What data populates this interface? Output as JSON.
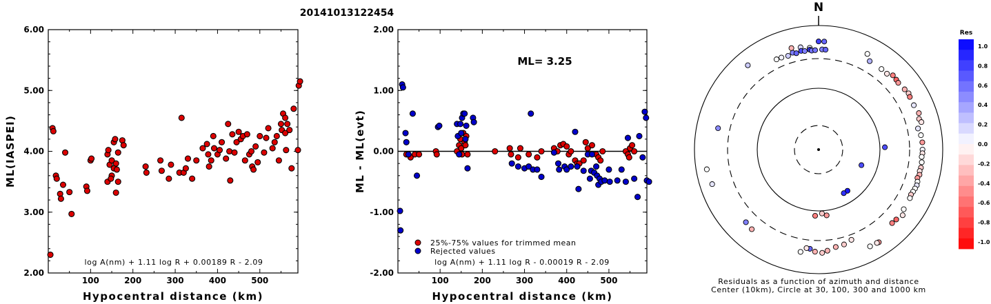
{
  "title": "20141013122454",
  "chart_data": [
    {
      "type": "scatter",
      "xlabel": "Hypocentral distance (km)",
      "ylabel": "ML(IASPEI)",
      "xlim": [
        0,
        590
      ],
      "ylim": [
        2.0,
        6.0
      ],
      "xticks": [
        "100",
        "200",
        "300",
        "400",
        "500"
      ],
      "yticks": [
        "2.00",
        "3.00",
        "4.00",
        "5.00",
        "6.00"
      ],
      "formula": "log A(nm) + 1.11 log R + 0.00189 R - 2.09",
      "point_color": "#dd0000",
      "points": [
        [
          5,
          2.3
        ],
        [
          10,
          4.38
        ],
        [
          12,
          4.33
        ],
        [
          18,
          3.6
        ],
        [
          20,
          3.55
        ],
        [
          28,
          3.3
        ],
        [
          30,
          3.22
        ],
        [
          35,
          3.45
        ],
        [
          40,
          3.98
        ],
        [
          50,
          3.33
        ],
        [
          55,
          2.97
        ],
        [
          90,
          3.42
        ],
        [
          92,
          3.35
        ],
        [
          100,
          3.85
        ],
        [
          102,
          3.88
        ],
        [
          140,
          3.95
        ],
        [
          142,
          4.02
        ],
        [
          140,
          3.5
        ],
        [
          145,
          3.78
        ],
        [
          150,
          3.6
        ],
        [
          155,
          3.72
        ],
        [
          150,
          3.85
        ],
        [
          148,
          3.55
        ],
        [
          155,
          4.15
        ],
        [
          158,
          4.2
        ],
        [
          160,
          3.8
        ],
        [
          162,
          3.7
        ],
        [
          165,
          3.5
        ],
        [
          160,
          3.32
        ],
        [
          165,
          3.98
        ],
        [
          175,
          4.18
        ],
        [
          178,
          4.1
        ],
        [
          230,
          3.75
        ],
        [
          232,
          3.65
        ],
        [
          265,
          3.85
        ],
        [
          268,
          3.68
        ],
        [
          285,
          3.55
        ],
        [
          290,
          3.78
        ],
        [
          310,
          3.65
        ],
        [
          315,
          4.55
        ],
        [
          320,
          3.65
        ],
        [
          325,
          3.72
        ],
        [
          330,
          3.88
        ],
        [
          340,
          3.55
        ],
        [
          350,
          3.85
        ],
        [
          365,
          4.05
        ],
        [
          375,
          4.12
        ],
        [
          378,
          3.95
        ],
        [
          380,
          3.75
        ],
        [
          385,
          3.85
        ],
        [
          390,
          4.25
        ],
        [
          392,
          4.05
        ],
        [
          400,
          3.95
        ],
        [
          405,
          4.02
        ],
        [
          410,
          4.15
        ],
        [
          420,
          3.88
        ],
        [
          425,
          4.45
        ],
        [
          428,
          4.0
        ],
        [
          430,
          3.52
        ],
        [
          435,
          4.28
        ],
        [
          440,
          3.98
        ],
        [
          445,
          4.15
        ],
        [
          450,
          4.32
        ],
        [
          455,
          4.2
        ],
        [
          460,
          4.25
        ],
        [
          465,
          3.85
        ],
        [
          470,
          4.28
        ],
        [
          475,
          3.95
        ],
        [
          480,
          4.0
        ],
        [
          482,
          3.75
        ],
        [
          485,
          3.7
        ],
        [
          490,
          4.08
        ],
        [
          495,
          3.82
        ],
        [
          500,
          4.25
        ],
        [
          510,
          3.98
        ],
        [
          515,
          4.22
        ],
        [
          520,
          4.38
        ],
        [
          530,
          4.05
        ],
        [
          535,
          4.15
        ],
        [
          540,
          4.25
        ],
        [
          545,
          3.85
        ],
        [
          550,
          4.45
        ],
        [
          552,
          4.35
        ],
        [
          555,
          4.62
        ],
        [
          560,
          4.55
        ],
        [
          560,
          4.3
        ],
        [
          562,
          4.02
        ],
        [
          565,
          4.45
        ],
        [
          570,
          4.35
        ],
        [
          575,
          3.72
        ],
        [
          580,
          4.7
        ],
        [
          590,
          4.02
        ],
        [
          592,
          5.08
        ],
        [
          595,
          5.15
        ]
      ]
    },
    {
      "type": "scatter",
      "xlabel": "Hypocentral distance (km)",
      "ylabel": "ML - ML(evt)",
      "xlim": [
        0,
        590
      ],
      "ylim": [
        -2.0,
        2.0
      ],
      "xticks": [
        "100",
        "200",
        "300",
        "400",
        "500"
      ],
      "yticks": [
        "-2.00",
        "-1.00",
        "0.00",
        "1.00",
        "2.00"
      ],
      "annotation": "ML= 3.25",
      "formula": "log A(nm) + 1.11 log R - 0.00019 R - 2.09",
      "legend": [
        {
          "label": "25%-75% values for trimmed mean",
          "color": "#dd0000"
        },
        {
          "label": "Rejected values",
          "color": "#0000cc"
        }
      ],
      "series": [
        {
          "name": "25%-75% values for trimmed mean",
          "color": "#dd0000",
          "points": [
            [
              20,
              -0.05
            ],
            [
              30,
              -0.1
            ],
            [
              40,
              -0.05
            ],
            [
              50,
              -0.05
            ],
            [
              90,
              0.0
            ],
            [
              92,
              -0.05
            ],
            [
              140,
              0.0
            ],
            [
              145,
              0.1
            ],
            [
              148,
              0.2
            ],
            [
              150,
              0.05
            ],
            [
              152,
              -0.05
            ],
            [
              155,
              0.3
            ],
            [
              158,
              0.15
            ],
            [
              160,
              0.1
            ],
            [
              162,
              0.25
            ],
            [
              165,
              -0.05
            ],
            [
              230,
              0.0
            ],
            [
              265,
              0.05
            ],
            [
              268,
              -0.05
            ],
            [
              285,
              -0.1
            ],
            [
              290,
              0.05
            ],
            [
              310,
              -0.05
            ],
            [
              330,
              -0.1
            ],
            [
              340,
              0.0
            ],
            [
              370,
              0.05
            ],
            [
              378,
              0.0
            ],
            [
              385,
              0.1
            ],
            [
              392,
              0.12
            ],
            [
              400,
              0.08
            ],
            [
              405,
              -0.05
            ],
            [
              410,
              0.0
            ],
            [
              420,
              -0.15
            ],
            [
              425,
              -0.2
            ],
            [
              430,
              -0.2
            ],
            [
              440,
              -0.15
            ],
            [
              445,
              0.15
            ],
            [
              450,
              0.05
            ],
            [
              460,
              0.1
            ],
            [
              470,
              -0.05
            ],
            [
              475,
              -0.1
            ],
            [
              480,
              -0.15
            ],
            [
              485,
              0.0
            ],
            [
              540,
              0.0
            ],
            [
              545,
              -0.05
            ],
            [
              548,
              -0.1
            ],
            [
              550,
              0.05
            ],
            [
              555,
              0.1
            ],
            [
              560,
              0.0
            ]
          ]
        },
        {
          "name": "Rejected values",
          "color": "#0000cc",
          "points": [
            [
              5,
              -0.98
            ],
            [
              6,
              -1.3
            ],
            [
              10,
              1.1
            ],
            [
              12,
              1.05
            ],
            [
              18,
              0.3
            ],
            [
              20,
              0.15
            ],
            [
              25,
              -0.05
            ],
            [
              35,
              0.62
            ],
            [
              45,
              -0.4
            ],
            [
              95,
              0.4
            ],
            [
              98,
              0.42
            ],
            [
              140,
              0.45
            ],
            [
              142,
              0.25
            ],
            [
              145,
              -0.05
            ],
            [
              148,
              0.45
            ],
            [
              150,
              0.3
            ],
            [
              152,
              0.55
            ],
            [
              155,
              0.62
            ],
            [
              158,
              0.62
            ],
            [
              160,
              0.2
            ],
            [
              162,
              0.42
            ],
            [
              165,
              -0.28
            ],
            [
              178,
              0.55
            ],
            [
              180,
              0.48
            ],
            [
              270,
              -0.2
            ],
            [
              285,
              -0.25
            ],
            [
              300,
              -0.28
            ],
            [
              310,
              -0.25
            ],
            [
              315,
              0.62
            ],
            [
              320,
              -0.3
            ],
            [
              330,
              -0.3
            ],
            [
              340,
              -0.42
            ],
            [
              370,
              -0.02
            ],
            [
              380,
              -0.2
            ],
            [
              382,
              -0.3
            ],
            [
              395,
              -0.25
            ],
            [
              400,
              -0.3
            ],
            [
              410,
              -0.25
            ],
            [
              420,
              0.32
            ],
            [
              425,
              -0.25
            ],
            [
              428,
              -0.62
            ],
            [
              440,
              -0.32
            ],
            [
              450,
              -0.05
            ],
            [
              455,
              -0.45
            ],
            [
              458,
              -0.32
            ],
            [
              460,
              -0.05
            ],
            [
              465,
              -0.35
            ],
            [
              470,
              -0.25
            ],
            [
              472,
              -0.4
            ],
            [
              475,
              -0.55
            ],
            [
              478,
              -0.45
            ],
            [
              482,
              -0.5
            ],
            [
              490,
              -0.48
            ],
            [
              500,
              -0.3
            ],
            [
              502,
              -0.5
            ],
            [
              520,
              -0.48
            ],
            [
              530,
              -0.3
            ],
            [
              540,
              -0.5
            ],
            [
              545,
              0.22
            ],
            [
              560,
              -0.45
            ],
            [
              568,
              -0.75
            ],
            [
              572,
              0.25
            ],
            [
              580,
              -0.1
            ],
            [
              585,
              0.65
            ],
            [
              588,
              0.55
            ],
            [
              590,
              -0.48
            ],
            [
              595,
              -0.5
            ]
          ]
        }
      ]
    },
    {
      "type": "polar-scatter",
      "north_label": "N",
      "caption_line1": "Residuals as a function of azimuth and distance",
      "caption_line2": "Center (10km), Circle at 30, 100, 300 and 1000 km",
      "colorbar_title": "Res",
      "colorbar_ticks": [
        "1.0",
        "0.8",
        "0.6",
        "0.4",
        "0.2",
        "0.0",
        "-0.2",
        "-0.4",
        "-0.6",
        "-0.8",
        "-1.0"
      ],
      "rings_km": [
        30,
        100,
        300,
        1000
      ],
      "ring_styles": [
        "dashed",
        "solid",
        "dashed",
        "solid"
      ],
      "stations": [
        [
          0,
          560,
          0.75
        ],
        [
          3,
          560,
          0.6
        ],
        [
          355,
          450,
          0.05
        ],
        [
          350,
          480,
          0.15
        ],
        [
          345,
          500,
          -0.3
        ],
        [
          320,
          600,
          0.2
        ],
        [
          335,
          410,
          0.0
        ],
        [
          338,
          405,
          0.05
        ],
        [
          342,
          395,
          0.2
        ],
        [
          345,
          420,
          0.5
        ],
        [
          347,
          400,
          0.6
        ],
        [
          350,
          420,
          0.7
        ],
        [
          352,
          410,
          0.5
        ],
        [
          355,
          420,
          0.8
        ],
        [
          356,
          405,
          0.55
        ],
        [
          358,
          408,
          0.55
        ],
        [
          2,
          420,
          0.5
        ],
        [
          4,
          418,
          0.6
        ],
        [
          27,
          545,
          0.0
        ],
        [
          30,
          450,
          0.3
        ],
        [
          42,
          450,
          -0.1
        ],
        [
          45,
          500,
          -0.5
        ],
        [
          48,
          490,
          -0.6
        ],
        [
          50,
          480,
          -0.4
        ],
        [
          55,
          500,
          -0.3
        ],
        [
          58,
          520,
          -0.2
        ],
        [
          60,
          505,
          -0.5
        ],
        [
          65,
          500,
          0.1
        ],
        [
          70,
          530,
          -0.3
        ],
        [
          73,
          500,
          -0.2
        ],
        [
          75,
          525,
          -0.1
        ],
        [
          78,
          440,
          0.1
        ],
        [
          82,
          470,
          0.0
        ],
        [
          86,
          480,
          -0.4
        ],
        [
          90,
          480,
          0.05
        ],
        [
          92,
          480,
          -0.1
        ],
        [
          94,
          470,
          0.0
        ],
        [
          97,
          480,
          0.0
        ],
        [
          100,
          480,
          -0.2
        ],
        [
          102,
          470,
          -0.1
        ],
        [
          104,
          480,
          -0.3
        ],
        [
          106,
          460,
          -0.4
        ],
        [
          108,
          480,
          0.0
        ],
        [
          110,
          490,
          0.1
        ],
        [
          112,
          480,
          0.0
        ],
        [
          114,
          470,
          0.0
        ],
        [
          116,
          460,
          -0.2
        ],
        [
          118,
          470,
          0.0
        ],
        [
          125,
          480,
          0.0
        ],
        [
          128,
          530,
          -0.1
        ],
        [
          132,
          490,
          -0.6
        ],
        [
          135,
          480,
          -0.5
        ],
        [
          160,
          360,
          -0.1
        ],
        [
          165,
          390,
          -0.2
        ],
        [
          170,
          400,
          -0.3
        ],
        [
          175,
          440,
          -0.3
        ],
        [
          178,
          470,
          -0.2
        ],
        [
          182,
          450,
          -0.3
        ],
        [
          185,
          410,
          0.6
        ],
        [
          187,
          405,
          -0.1
        ],
        [
          173,
          120,
          -0.4
        ],
        [
          177,
          110,
          -0.2
        ],
        [
          183,
          120,
          -0.5
        ],
        [
          190,
          480,
          0.0
        ],
        [
          220,
          480,
          -0.3
        ],
        [
          225,
          460,
          0.5
        ],
        [
          252,
          640,
          0.1
        ],
        [
          260,
          680,
          0.0
        ],
        [
          282,
          460,
          0.45
        ],
        [
          152,
          590,
          0.0
        ],
        [
          147,
          610,
          -0.4
        ],
        [
          148,
          600,
          -0.1
        ],
        [
          38,
          450,
          0.0
        ],
        [
          145,
          70,
          0.9
        ],
        [
          150,
          70,
          0.8
        ],
        [
          110,
          60,
          0.7
        ],
        [
          88,
          120,
          0.7
        ]
      ]
    }
  ]
}
